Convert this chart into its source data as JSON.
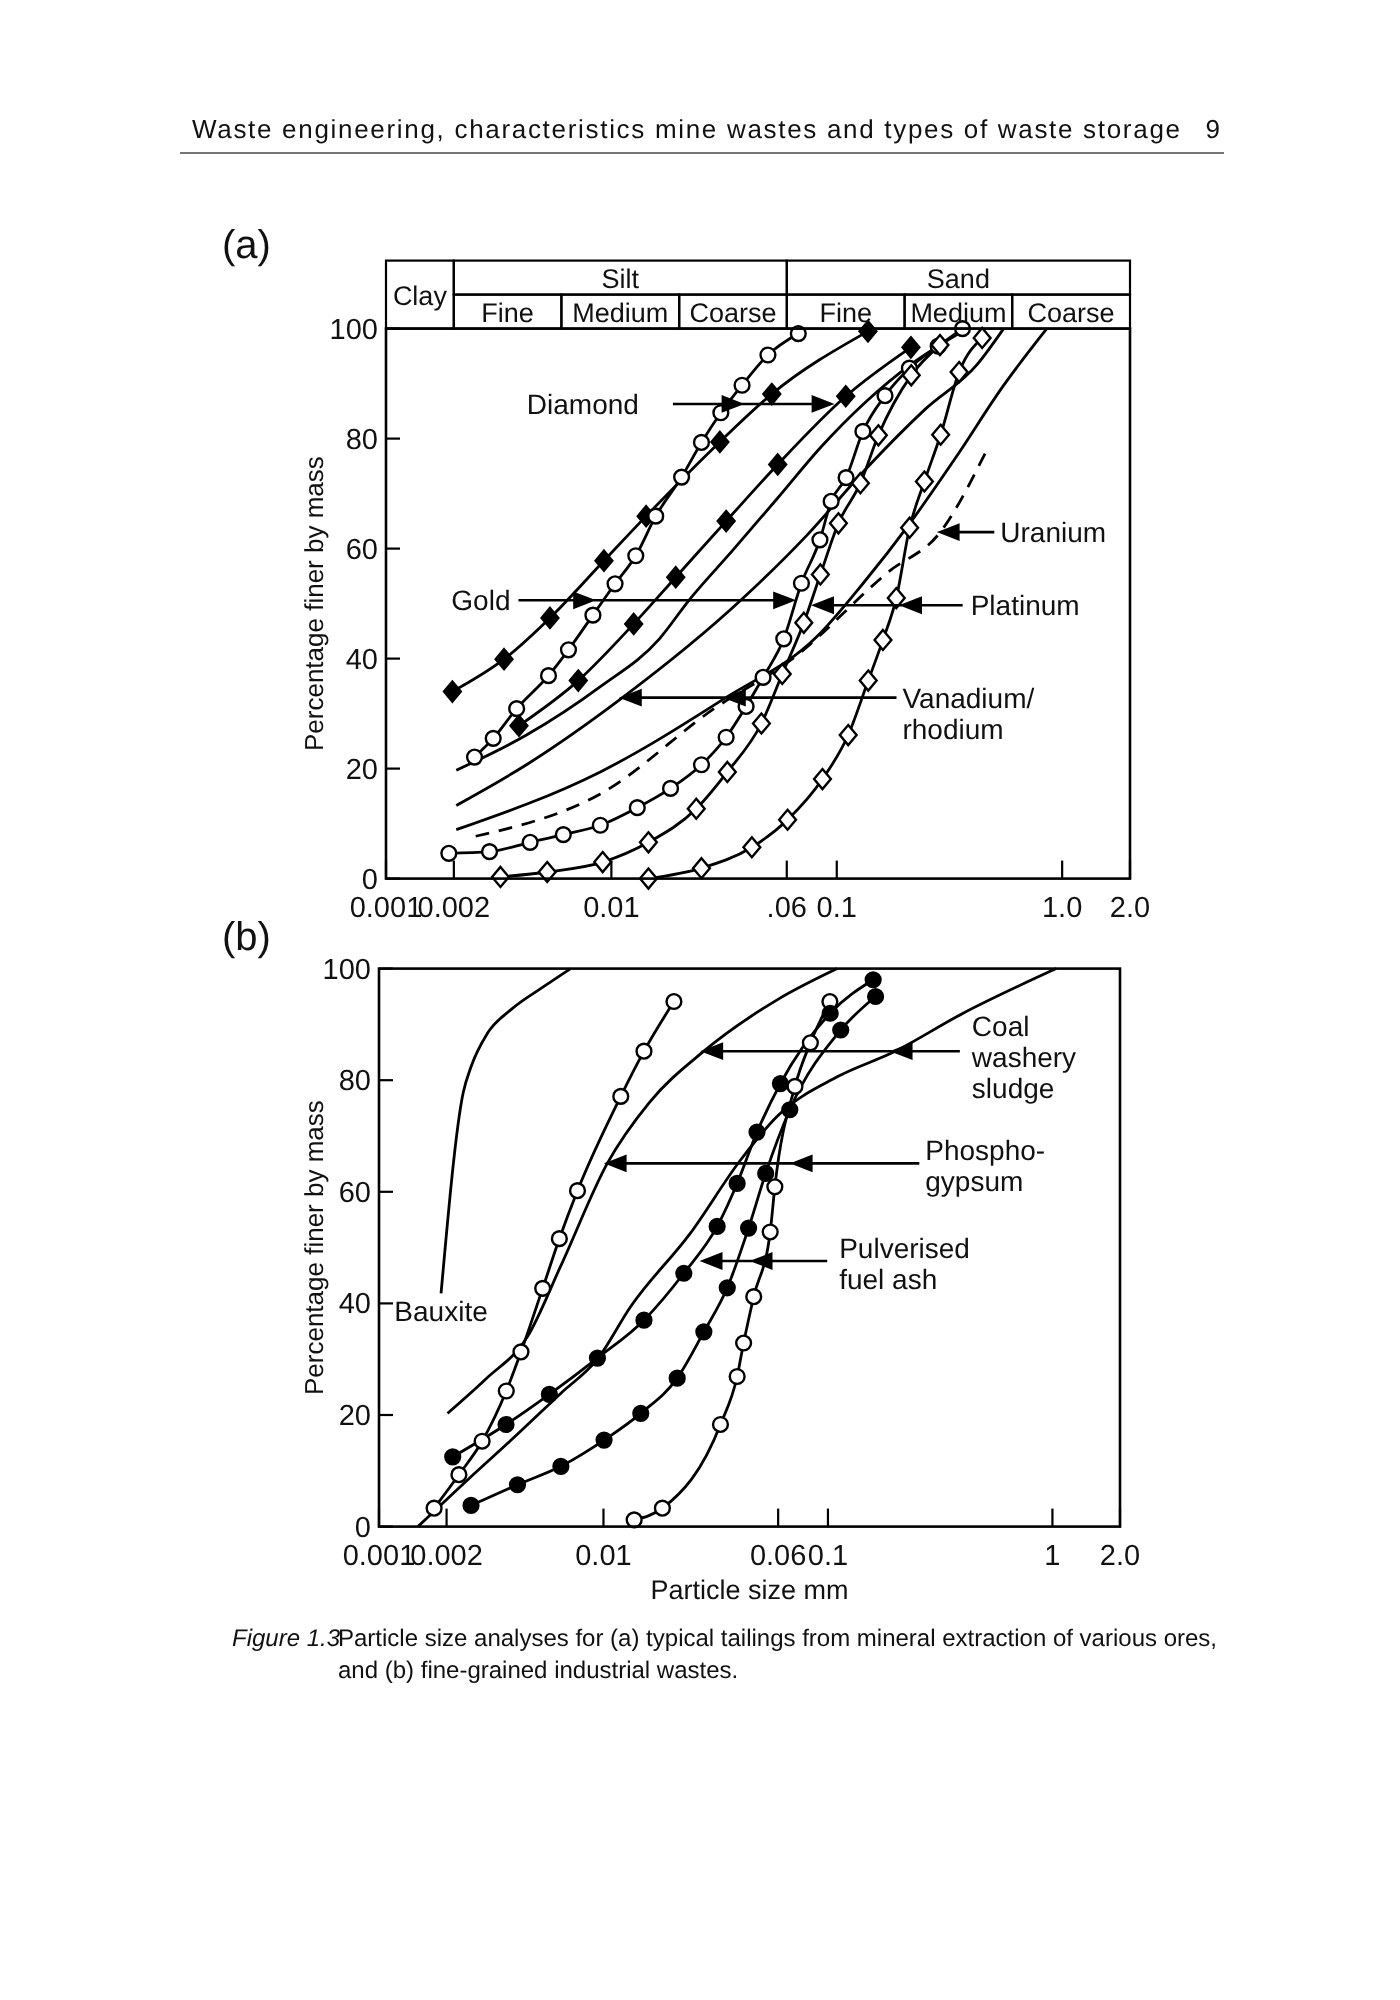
{
  "chart_data": [
    {
      "type": "line",
      "title": "(a)",
      "ylabel": "Percentage finer by mass",
      "log": "x",
      "xlim": [
        0.001,
        2
      ],
      "xticks": [
        0.001,
        0.002,
        0.01,
        {
          "value": 0.06,
          "label": ".06"
        },
        0.1,
        {
          "value": 1,
          "label": "1.0"
        },
        {
          "value": 2,
          "label": "2.0"
        }
      ],
      "ylim": [
        0,
        100
      ],
      "yticks": [
        0,
        20,
        40,
        60,
        80,
        100
      ],
      "annotations": [
        "Waste engineering, characteristics mine wastes and types of waste storage",
        "9",
        "Clay",
        "Silt",
        "Sand",
        "Fine",
        "Medium",
        "Coarse",
        "Fine",
        "Medium",
        "Coarse",
        {
          "text": "Diamond",
          "x": 0.0942,
          "y": 86.3
        },
        {
          "text": "Gold",
          "x": 0.0636,
          "y": 50.6
        },
        {
          "text": "Uranium",
          "x": 0.288,
          "y": 63
        },
        {
          "text": "Platinum",
          "x": 0.0798,
          "y": 49.7
        },
        {
          "text": "Vanadium/\nrhodium",
          "x": 0.0112,
          "y": 32.9
        }
      ],
      "series": [
        {
          "x": [
            0.00197,
            0.00334,
            0.00534,
            0.00927,
            0.01426,
            0.0303,
            0.0515,
            0.1375
          ],
          "values": [
            34,
            39.9,
            47.4,
            57.8,
            65.9,
            79.4,
            88.1,
            99.5
          ],
          "color": "#000000",
          "marker": "diamond"
        },
        {
          "x": [
            0.00389,
            0.00713,
            0.01256,
            0.0193,
            0.0323,
            0.0547,
            0.1096,
            0.2133
          ],
          "values": [
            27.8,
            36,
            46.3,
            54.8,
            65,
            75.3,
            87.7,
            96.6
          ],
          "color": "#000000",
          "marker": "diamond"
        },
        {
          "x": [
            0.00247,
            0.00299,
            0.0038,
            0.00526,
            0.00645,
            0.00828,
            0.01038,
            0.01283,
            0.01573,
            0.02049,
            0.0251,
            0.0306,
            0.038,
            0.0495,
            0.0675
          ],
          "values": [
            22.1,
            25.5,
            30.9,
            36.9,
            41.6,
            47.9,
            53.6,
            58.7,
            65.9,
            73,
            79.3,
            84.7,
            89.7,
            95.2,
            99.1
          ],
          "color": "#000000",
          "marker": "circle-open"
        },
        {
          "x": [
            0.0019,
            0.00288,
            0.00436,
            0.00612,
            0.00893,
            0.01303,
            0.0183,
            0.0251,
            0.0323,
            0.0396,
            0.0471,
            0.0582,
            0.0697,
            0.0842,
            0.0944,
            0.11,
            0.1306,
            0.1637,
            0.21,
            0.2818,
            0.3614
          ],
          "values": [
            4.6,
            4.9,
            6.6,
            8,
            9.7,
            12.9,
            16.4,
            20.7,
            25.7,
            31.3,
            36.6,
            43.6,
            53.7,
            61.6,
            68.6,
            72.9,
            81.3,
            87.8,
            92.8,
            96.8,
            100
          ],
          "color": "#000000",
          "marker": "circle-open"
        },
        {
          "x": [
            0.00322,
            0.00519,
            0.00915,
            0.0146,
            0.0238,
            0.0327,
            0.0463,
            0.0573,
            0.0714,
            0.0846,
            0.1017,
            0.1273,
            0.153,
            0.214,
            0.287
          ],
          "values": [
            0.3,
            1.2,
            3,
            6.6,
            12.7,
            19.4,
            28.2,
            37.2,
            46.5,
            55.3,
            64.6,
            71.9,
            80.6,
            91.5,
            97
          ],
          "color": "#000000",
          "marker": "diamond-open"
        },
        {
          "x": [
            0.0146,
            0.0251,
            0.042,
            0.0605,
            0.0864,
            0.1124,
            0.1379,
            0.1603,
            0.1837,
            0.2105,
            0.2448,
            0.289,
            0.349,
            0.4416
          ],
          "values": [
            0,
            1.9,
            5.7,
            10.7,
            18.1,
            26.1,
            36,
            43.4,
            51,
            63.8,
            72.2,
            80.7,
            92.1,
            98.3
          ],
          "color": "#000000",
          "marker": "diamond-open"
        },
        {
          "x": [
            0.00205,
            0.0042,
            0.00893,
            0.01634,
            0.02208,
            0.03475,
            0.0547,
            0.0861,
            0.1355,
            0.2133,
            0.38
          ],
          "values": [
            19.7,
            26.1,
            34.9,
            43.6,
            50.6,
            59.8,
            69.2,
            78.7,
            86.8,
            93.5,
            100
          ],
          "color": "#000000"
        },
        {
          "x": [
            0.00205,
            0.0042,
            0.0112,
            0.0375,
            0.074,
            0.1355,
            0.2477,
            0.42,
            0.55
          ],
          "values": [
            13.3,
            20.7,
            32.9,
            50.6,
            62.5,
            74.6,
            85.4,
            93.5,
            100
          ],
          "color": "#000000"
        },
        {
          "x": [
            0.00205,
            0.00893,
            0.0322,
            0.0817,
            0.131,
            0.211,
            0.339,
            0.546,
            0.855
          ],
          "values": [
            8.9,
            19.4,
            32.9,
            44,
            53.7,
            64.6,
            76.7,
            89.5,
            100
          ],
          "color": "#000000"
        },
        {
          "x": [
            0.0025,
            0.00893,
            0.0288,
            0.0637,
            0.17,
            0.288,
            0.455
          ],
          "values": [
            7.7,
            15.4,
            31,
            40,
            55.8,
            63,
            77.3
          ],
          "color": "#000000",
          "line_style": "dashed"
        }
      ]
    },
    {
      "type": "line",
      "title": "(b)",
      "xlabel": "Particle size mm",
      "ylabel": "Percentage finer by mass",
      "log": "x",
      "xlim": [
        0.001,
        2
      ],
      "xticks": [
        0.001,
        0.002,
        0.01,
        0.06,
        0.1,
        1,
        {
          "value": 2,
          "label": "2.0"
        }
      ],
      "ylim": [
        0,
        100
      ],
      "yticks": [
        0,
        20,
        40,
        60,
        80,
        100
      ],
      "annotations": [
        {
          "text": "Coal\nwashery\nsludge",
          "x": 0.028,
          "y": 85.2
        },
        {
          "text": "Phospho-\ngypsum",
          "x": 0.0104,
          "y": 65.1
        },
        "Pulverised\nfuel ash",
        {
          "text": "Bauxite",
          "x": 0.00189,
          "y": 41.8
        },
        "Figure 1.3",
        "Particle size analyses for (a) typical tailings from mineral extraction of various ores, and (b) fine-grained industrial wastes."
      ],
      "series": [
        {
          "x": [
            0.00189,
            0.00237,
            0.00257,
            0.00304,
            0.00386,
            0.00543,
            0.00714
          ],
          "values": [
            41.8,
            77.7,
            82.4,
            88.4,
            92.6,
            96.8,
            100
          ],
          "color": "#000000"
        },
        {
          "x": [
            0.00176,
            0.00227,
            0.00288,
            0.00369,
            0.00429,
            0.00536,
            0.00636,
            0.00766,
            0.01194,
            0.01515,
            0.0206
          ],
          "values": [
            3.3,
            9.3,
            15.3,
            24.3,
            31.3,
            42.7,
            51.6,
            60.2,
            77.1,
            85.2,
            94.1
          ],
          "color": "#000000",
          "marker": "circle-open"
        },
        {
          "x": [
            0.0137,
            0.0183,
            0.0332,
            0.0394,
            0.0421,
            0.0467,
            0.0553,
            0.058,
            0.0713,
            0.0835,
            0.102
          ],
          "values": [
            1.2,
            3.3,
            18.3,
            26.9,
            32.9,
            41.2,
            52.8,
            60.9,
            78.9,
            86.7,
            94.1
          ],
          "color": "#000000",
          "marker": "circle-open"
        },
        {
          "x": [
            0.00213,
            0.00368,
            0.00574,
            0.0094,
            0.01515,
            0.0228,
            0.0321,
            0.0394,
            0.0483,
            0.0614,
            0.1023,
            0.159
          ],
          "values": [
            12.5,
            18.3,
            23.7,
            30.2,
            37,
            45.4,
            53.8,
            61.5,
            70.7,
            79.4,
            92,
            98
          ],
          "color": "#000000",
          "marker": "circle"
        },
        {
          "x": [
            0.00257,
            0.00414,
            0.00646,
            0.01006,
            0.01466,
            0.0213,
            0.028,
            0.0356,
            0.0443,
            0.0528,
            0.0676,
            0.114,
            0.163
          ],
          "values": [
            3.8,
            7.5,
            10.8,
            15.5,
            20.3,
            26.6,
            34.9,
            42.8,
            53.5,
            63.3,
            74.7,
            89,
            95
          ],
          "color": "#000000",
          "marker": "circle"
        },
        {
          "x": [
            0.00202,
            0.003,
            0.00458,
            0.0065,
            0.0104,
            0.016,
            0.028,
            0.0594,
            0.11
          ],
          "values": [
            20.3,
            26.5,
            34,
            47,
            65.1,
            76,
            85.2,
            94.4,
            100
          ],
          "color": "#000000"
        },
        {
          "x": [
            0.00149,
            0.0025,
            0.004,
            0.0065,
            0.0094,
            0.0132,
            0.0244,
            0.0408,
            0.0593,
            0.11,
            0.195,
            0.4,
            1.04
          ],
          "values": [
            0,
            8.5,
            16,
            24,
            30,
            39.4,
            52.6,
            65.7,
            73.5,
            80.6,
            85,
            92,
            100
          ],
          "color": "#000000"
        }
      ]
    }
  ]
}
